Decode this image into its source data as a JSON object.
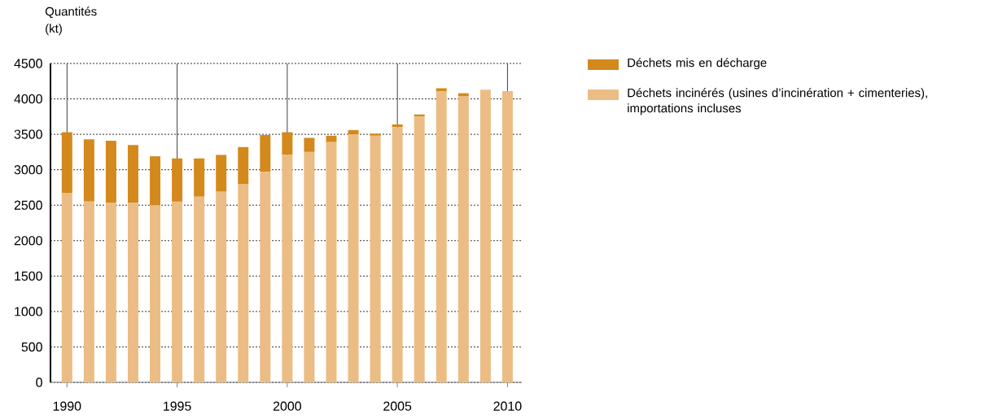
{
  "chart_data": {
    "type": "bar",
    "stacked": true,
    "ylabel": "Quantités (kt)",
    "x": [
      1990,
      1991,
      1992,
      1993,
      1994,
      1995,
      1996,
      1997,
      1998,
      1999,
      2000,
      2001,
      2002,
      2003,
      2004,
      2005,
      2006,
      2007,
      2008,
      2009,
      2010
    ],
    "series": [
      {
        "name": "Déchets incinérés (usines d’incinération + cimenteries), importations incluses",
        "color": "#ebbd84",
        "values": [
          2670,
          2550,
          2530,
          2530,
          2500,
          2550,
          2620,
          2690,
          2800,
          2970,
          3210,
          3250,
          3390,
          3500,
          3480,
          3600,
          3750,
          4110,
          4040,
          4130,
          4110
        ]
      },
      {
        "name": "Déchets mis en décharge",
        "color": "#d4891c",
        "values": [
          860,
          880,
          880,
          820,
          690,
          610,
          540,
          520,
          520,
          520,
          320,
          200,
          90,
          60,
          30,
          40,
          30,
          40,
          40,
          0,
          0
        ]
      }
    ],
    "xlim": [
      1989.25,
      2010.65
    ],
    "xticks": [
      1990,
      1995,
      2000,
      2005,
      2010
    ],
    "ylim": [
      0,
      4500
    ],
    "yticks": [
      0,
      500,
      1000,
      1500,
      2000,
      2500,
      3000,
      3500,
      4000,
      4500
    ],
    "grid": true,
    "legend": "top right"
  }
}
